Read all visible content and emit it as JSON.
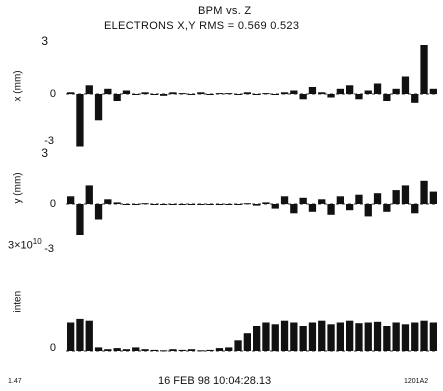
{
  "chart_data": {
    "type": "bar",
    "title": "BPM vs. Z",
    "subtitle": "ELECTRONS X,Y RMS = 0.569  0.523",
    "timestamp": "16 FEB 98 10:04:28.13",
    "corner_left": "1.47",
    "corner_right": "1201A2",
    "panels": [
      {
        "id": "x",
        "ylabel": "x (mm)",
        "yticks": [
          "3",
          "0",
          "-3"
        ],
        "ylim": [
          -3,
          3
        ],
        "values": [
          0.1,
          -3.0,
          0.5,
          -1.5,
          0.3,
          -0.4,
          0.2,
          0.0,
          0.1,
          0.0,
          -0.1,
          0.1,
          0.05,
          0.0,
          0.1,
          0.0,
          0.05,
          0.05,
          0.0,
          0.1,
          0.0,
          0.05,
          0.0,
          0.1,
          0.2,
          -0.3,
          0.4,
          0.1,
          -0.2,
          0.3,
          0.5,
          -0.3,
          0.2,
          0.6,
          -0.4,
          0.3,
          1.0,
          -0.5,
          2.8,
          0.3
        ]
      },
      {
        "id": "y",
        "ylabel": "y (mm)",
        "yticks": [
          "3",
          "0",
          "-3"
        ],
        "ylim": [
          -3,
          3
        ],
        "values": [
          0.5,
          -2.0,
          1.2,
          -1.0,
          0.3,
          0.1,
          0.0,
          0.0,
          0.05,
          0.0,
          0.0,
          0.0,
          0.0,
          0.0,
          0.0,
          0.0,
          0.0,
          0.0,
          0.0,
          0.05,
          -0.1,
          0.1,
          -0.3,
          0.5,
          -0.6,
          0.4,
          -0.5,
          0.3,
          -0.7,
          0.5,
          -0.4,
          0.6,
          -0.8,
          0.7,
          -0.5,
          0.9,
          1.2,
          -0.6,
          1.5,
          0.8
        ]
      },
      {
        "id": "inten",
        "ylabel": "inten",
        "yticks_top_base": "3×10",
        "yticks_top_exp": "10",
        "yticks_bottom": "0",
        "ylim": [
          0,
          30000000000.0
        ],
        "values": [
          8000000000.0,
          9000000000.0,
          8500000000.0,
          1000000000.0,
          500000000.0,
          800000000.0,
          500000000.0,
          1000000000.0,
          500000000.0,
          300000000.0,
          200000000.0,
          500000000.0,
          300000000.0,
          500000000.0,
          200000000.0,
          300000000.0,
          800000000.0,
          1000000000.0,
          3000000000.0,
          5000000000.0,
          7000000000.0,
          8000000000.0,
          7500000000.0,
          8500000000.0,
          8000000000.0,
          7000000000.0,
          8000000000.0,
          8500000000.0,
          7500000000.0,
          8000000000.0,
          8500000000.0,
          7800000000.0,
          8000000000.0,
          8200000000.0,
          7000000000.0,
          8000000000.0,
          7500000000.0,
          8000000000.0,
          8500000000.0,
          8000000000.0
        ]
      }
    ]
  }
}
